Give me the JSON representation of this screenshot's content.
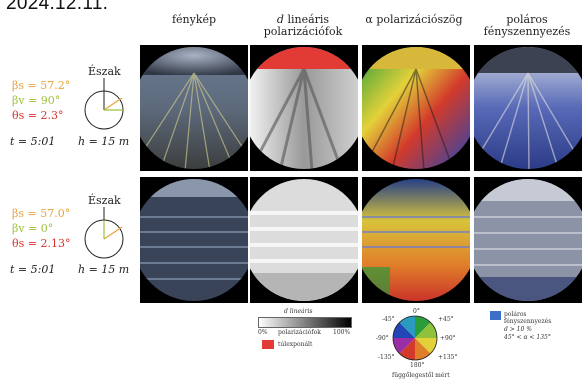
{
  "date": "2024.12.11.",
  "columns": [
    "fénykép",
    "d lineáris polarizációfok",
    "α polarizációszög",
    "poláros fényszennyezés"
  ],
  "column_heads": {
    "photo": "fénykép",
    "dop_l1": "d",
    "dop_l1b": "lineáris",
    "dop_l2": "polarizációfok",
    "aop": "α polarizációszög",
    "pol_l1": "poláros",
    "pol_l2": "fényszennyezés"
  },
  "rows": [
    {
      "north": "Észak",
      "beta_s": "βs = 57.2°",
      "beta_v": "βv = 90°",
      "theta_s": "θs = 2.3°",
      "time": "t = 5:01",
      "height": "h = 15 m"
    },
    {
      "north": "Észak",
      "beta_s": "βs = 57.0°",
      "beta_v": "βv = 0°",
      "theta_s": "θs = 2.13°",
      "time": "t = 5:01",
      "height": "h = 15 m"
    }
  ],
  "legend_dop": {
    "title": "d lineáris",
    "min": "0%",
    "middle": "polarizációfok",
    "max": "100%",
    "overexposed": "túlexponált"
  },
  "legend_aop": {
    "top": "0°",
    "tl": "-45°",
    "tr": "+45°",
    "left": "-90°",
    "right": "+90°",
    "bl": "-135°",
    "br": "+135°",
    "bottom": "180°",
    "caption": "függőlegestől mért"
  },
  "legend_pol": {
    "line1": "poláros",
    "line2": "fényszennyezés",
    "line3": "d > 10 %",
    "line4": "45° < α < 135°"
  },
  "colors": {
    "param_beta_s": "#e8a33a",
    "param_beta_v": "#9cc13a",
    "param_theta_s": "#d8322c",
    "overexposed": "#e23b35",
    "pol_blue": "#3d6fc8"
  }
}
